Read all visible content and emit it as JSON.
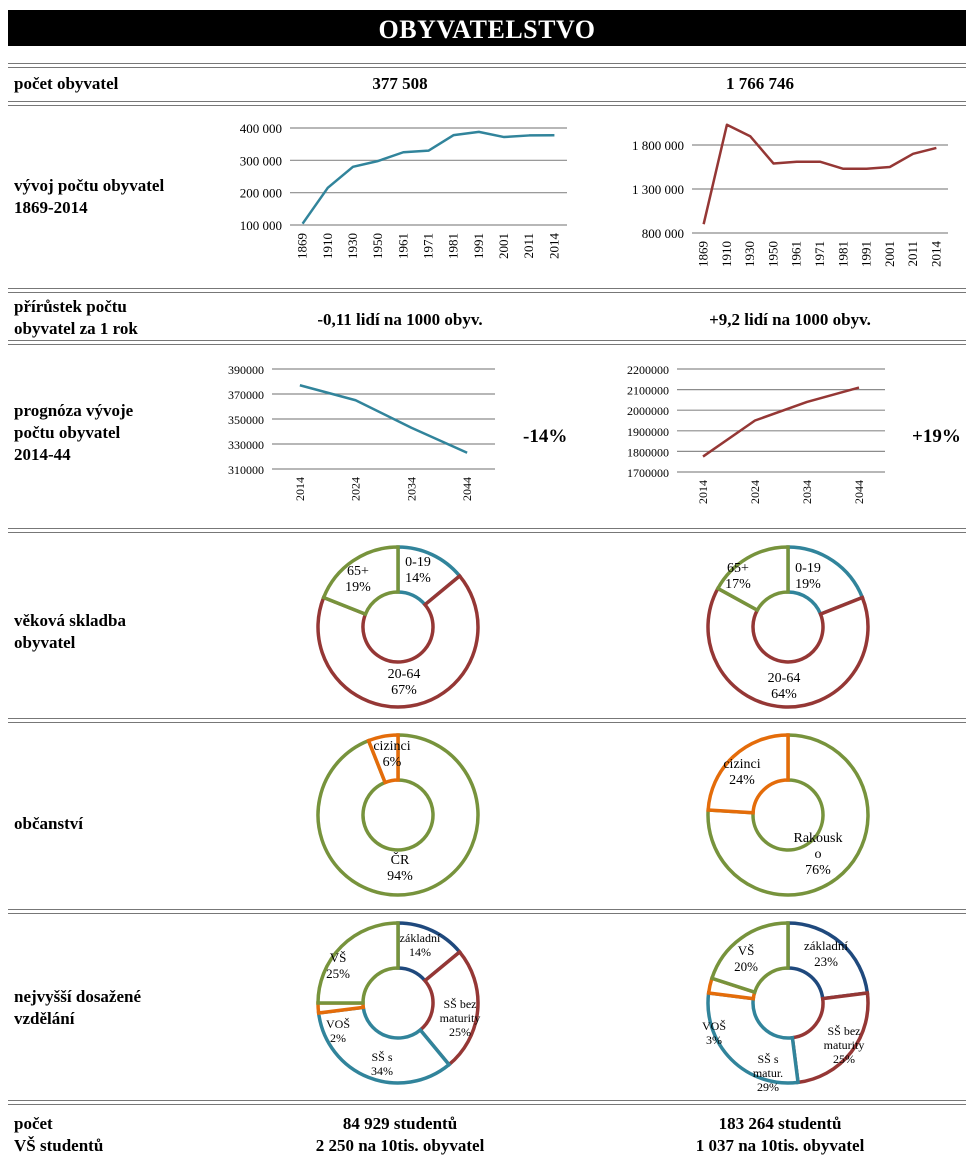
{
  "title": "OBYVATELSTVO",
  "rows": {
    "population": {
      "label": "počet obyvatel",
      "left": "377 508",
      "right": "1 766 746"
    },
    "history": {
      "label_1": "vývoj počtu obyvatel",
      "label_2": "1869-2014"
    },
    "growth": {
      "label_1": "přírůstek počtu",
      "label_2": "obyvatel za 1 rok",
      "left": "-0,11 lidí na 1000 obyv.",
      "right": "+9,2 lidí na 1000 obyv."
    },
    "forecast": {
      "label_1": "prognóza vývoje",
      "label_2": "počtu obyvatel",
      "label_3": "2014-44",
      "left_change": "-14%",
      "right_change": "+19%"
    },
    "age": {
      "label_1": "věková skladba",
      "label_2": "obyvatel"
    },
    "citizenship": {
      "label": "občanství"
    },
    "education": {
      "label_1": "nejvyšší dosažené",
      "label_2": "vzdělání"
    },
    "students": {
      "label_1": "počet",
      "label_2": "VŠ studentů",
      "left_1": "84 929 studentů",
      "left_2": "2 250 na 10tis. obyvatel",
      "right_1": "183 264 studentů",
      "right_2": "1 037 na 10tis. obyvatel"
    }
  },
  "colors": {
    "teal": "#31849b",
    "darkred": "#953735",
    "olive": "#77933c",
    "orange": "#e46c0a",
    "navy": "#1f497d",
    "grid": "#7f7f7f"
  },
  "chart_data": [
    {
      "id": "history-left",
      "type": "line",
      "color": "#31849b",
      "categories": [
        "1869",
        "1910",
        "1930",
        "1950",
        "1961",
        "1971",
        "1981",
        "1991",
        "2001",
        "2011",
        "2014"
      ],
      "values": [
        104000,
        215000,
        280000,
        298000,
        325000,
        330000,
        378000,
        388000,
        372000,
        377000,
        377508
      ],
      "ylim": [
        100000,
        400000
      ],
      "yticks": [
        100000,
        200000,
        300000,
        400000
      ],
      "ytick_labels": [
        "100 000",
        "200 000",
        "300 000",
        "400 000"
      ]
    },
    {
      "id": "history-right",
      "type": "line",
      "color": "#953735",
      "categories": [
        "1869",
        "1910",
        "1930",
        "1950",
        "1961",
        "1971",
        "1981",
        "1991",
        "2001",
        "2011",
        "2014"
      ],
      "values": [
        900000,
        2030000,
        1900000,
        1590000,
        1610000,
        1610000,
        1530000,
        1530000,
        1550000,
        1700000,
        1766746
      ],
      "ylim": [
        800000,
        1800000
      ],
      "yticks": [
        800000,
        1300000,
        1800000
      ],
      "ytick_labels": [
        "800 000",
        "1 300 000",
        "1 800 000"
      ]
    },
    {
      "id": "forecast-left",
      "type": "line",
      "color": "#31849b",
      "categories": [
        "2014",
        "2024",
        "2034",
        "2044"
      ],
      "values": [
        377000,
        365000,
        343000,
        323000
      ],
      "ylim": [
        310000,
        390000
      ],
      "yticks": [
        310000,
        330000,
        350000,
        370000,
        390000
      ],
      "ytick_labels": [
        "310000",
        "330000",
        "350000",
        "370000",
        "390000"
      ]
    },
    {
      "id": "forecast-right",
      "type": "line",
      "color": "#953735",
      "categories": [
        "2014",
        "2024",
        "2034",
        "2044"
      ],
      "values": [
        1775000,
        1950000,
        2040000,
        2110000
      ],
      "ylim": [
        1700000,
        2200000
      ],
      "yticks": [
        1700000,
        1800000,
        1900000,
        2000000,
        2100000,
        2200000
      ],
      "ytick_labels": [
        "1700000",
        "1800000",
        "1900000",
        "2000000",
        "2100000",
        "2200000"
      ]
    },
    {
      "id": "age-left",
      "type": "pie",
      "slices": [
        {
          "name": "0-19",
          "value": 14,
          "label": "14%",
          "color": "#31849b"
        },
        {
          "name": "20-64",
          "value": 67,
          "label": "67%",
          "color": "#953735"
        },
        {
          "name": "65+",
          "value": 19,
          "label": "19%",
          "color": "#77933c"
        }
      ]
    },
    {
      "id": "age-right",
      "type": "pie",
      "slices": [
        {
          "name": "0-19",
          "value": 19,
          "label": "19%",
          "color": "#31849b"
        },
        {
          "name": "20-64",
          "value": 64,
          "label": "64%",
          "color": "#953735"
        },
        {
          "name": "65+",
          "value": 17,
          "label": "17%",
          "color": "#77933c"
        }
      ]
    },
    {
      "id": "citizenship-left",
      "type": "pie",
      "slices": [
        {
          "name": "ČR",
          "value": 94,
          "label": "94%",
          "color": "#77933c"
        },
        {
          "name": "cizinci",
          "value": 6,
          "label": "6%",
          "color": "#e46c0a"
        }
      ]
    },
    {
      "id": "citizenship-right",
      "type": "pie",
      "slices": [
        {
          "name": "Rakousko",
          "value": 76,
          "label": "76%",
          "color": "#77933c"
        },
        {
          "name": "cizinci",
          "value": 24,
          "label": "24%",
          "color": "#e46c0a"
        }
      ]
    },
    {
      "id": "education-left",
      "type": "pie",
      "slices": [
        {
          "name": "základní",
          "value": 14,
          "label": "14%",
          "color": "#1f497d"
        },
        {
          "name": "SŠ bez maturity",
          "value": 25,
          "label": "25%",
          "color": "#953735"
        },
        {
          "name": "SŠ s matur.",
          "value": 34,
          "label": "34%",
          "color": "#31849b"
        },
        {
          "name": "VOŠ",
          "value": 2,
          "label": "2%",
          "color": "#e46c0a"
        },
        {
          "name": "VŠ",
          "value": 25,
          "label": "25%",
          "color": "#77933c"
        }
      ]
    },
    {
      "id": "education-right",
      "type": "pie",
      "slices": [
        {
          "name": "základní",
          "value": 23,
          "label": "23%",
          "color": "#1f497d"
        },
        {
          "name": "SŠ bez maturity",
          "value": 25,
          "label": "25%",
          "color": "#953735"
        },
        {
          "name": "SŠ s matur.",
          "value": 29,
          "label": "29%",
          "color": "#31849b"
        },
        {
          "name": "VOŠ",
          "value": 3,
          "label": "3%",
          "color": "#e46c0a"
        },
        {
          "name": "VŠ",
          "value": 20,
          "label": "20%",
          "color": "#77933c"
        }
      ]
    }
  ]
}
